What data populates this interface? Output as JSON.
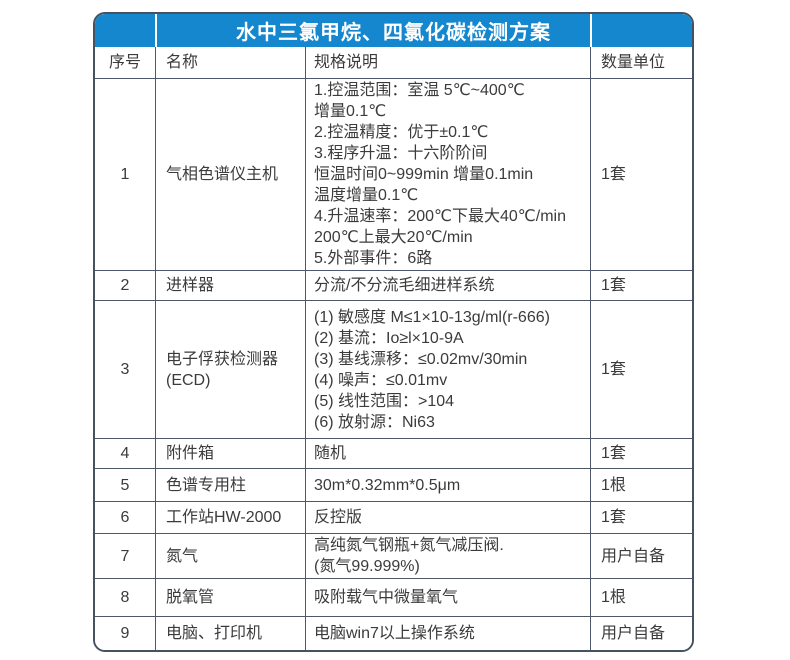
{
  "title": "水中三氯甲烷、四氯化碳检测方案",
  "colors": {
    "title_bar_bg": "#1587ce",
    "title_text": "#ffffff",
    "grid_line": "#4d586a",
    "outer_border": "#465260",
    "body_text": "#3b3b3b",
    "page_bg": "#ffffff"
  },
  "table": {
    "headers": [
      "序号",
      "名称",
      "规格说明",
      "数量单位"
    ],
    "rows": [
      {
        "no": "1",
        "name": "气相色谱仪主机",
        "spec": [
          "1.控温范围：室温 5℃~400℃",
          "增量0.1℃",
          "2.控温精度：优于±0.1℃",
          "3.程序升温：十六阶阶间",
          "恒温时间0~999min 增量0.1min",
          "温度增量0.1℃",
          "4.升温速率：200℃下最大40℃/min",
          "200℃上最大20℃/min",
          "5.外部事件：6路"
        ],
        "qty": "1套"
      },
      {
        "no": "2",
        "name": "进样器",
        "spec": [
          "分流/不分流毛细进样系统"
        ],
        "qty": "1套"
      },
      {
        "no": "3",
        "name": "电子俘获检测器 (ECD)",
        "spec": [
          "(1) 敏感度 M≤1×10-13g/ml(r-666)",
          "(2) 基流：Io≥l×10-9A",
          "(3) 基线漂移：≤0.02mv/30min",
          "(4) 噪声：≤0.01mv",
          "(5) 线性范围：>104",
          "(6) 放射源：Ni63"
        ],
        "qty": "1套"
      },
      {
        "no": "4",
        "name": "附件箱",
        "spec": [
          "随机"
        ],
        "qty": "1套"
      },
      {
        "no": "5",
        "name": "色谱专用柱",
        "spec": [
          "30m*0.32mm*0.5μm"
        ],
        "qty": "1根"
      },
      {
        "no": "6",
        "name": "工作站HW-2000",
        "spec": [
          "反控版"
        ],
        "qty": "1套"
      },
      {
        "no": "7",
        "name": "氮气",
        "spec": [
          "高纯氮气钢瓶+氮气减压阀.",
          "(氮气99.999%)"
        ],
        "qty": "用户自备"
      },
      {
        "no": "8",
        "name": "脱氧管",
        "spec": [
          "吸附载气中微量氧气"
        ],
        "qty": "1根"
      },
      {
        "no": "9",
        "name": "电脑、打印机",
        "spec": [
          "电脑win7以上操作系统"
        ],
        "qty": "用户自备"
      }
    ]
  }
}
